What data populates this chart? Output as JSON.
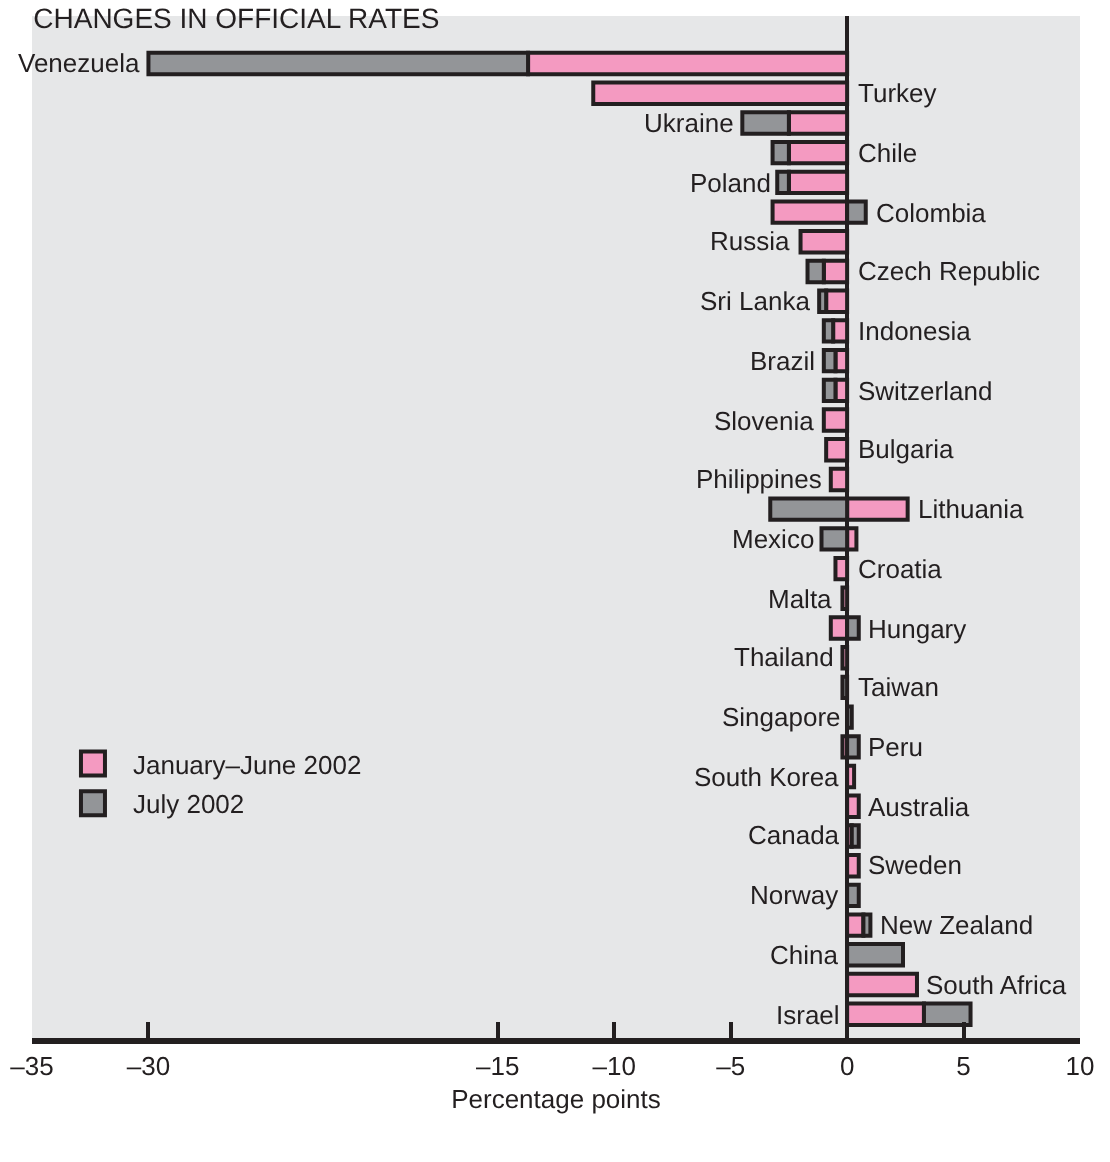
{
  "chart_data": {
    "type": "bar",
    "orientation": "horizontal",
    "title": "CHANGES IN OFFICIAL RATES",
    "xlabel": "Percentage points",
    "categories": [
      "Venezuela",
      "Turkey",
      "Ukraine",
      "Chile",
      "Poland",
      "Colombia",
      "Russia",
      "Czech Republic",
      "Sri Lanka",
      "Indonesia",
      "Brazil",
      "Switzerland",
      "Slovenia",
      "Bulgaria",
      "Philippines",
      "Lithuania",
      "Mexico",
      "Croatia",
      "Malta",
      "Hungary",
      "Thailand",
      "Taiwan",
      "Singapore",
      "Peru",
      "South Korea",
      "Australia",
      "Canada",
      "Sweden",
      "Norway",
      "New Zealand",
      "China",
      "South Africa",
      "Israel"
    ],
    "series": [
      {
        "name": "January–June 2002",
        "color": "#f49ac1",
        "values": [
          -13.7,
          -10.9,
          -2.5,
          -2.5,
          -2.5,
          -3.2,
          -2.0,
          -1.0,
          -0.9,
          -0.6,
          -0.5,
          -0.5,
          -1.0,
          -0.9,
          -0.7,
          2.6,
          0.4,
          -0.5,
          -0.2,
          -0.7,
          -0.2,
          null,
          null,
          -0.2,
          0.3,
          0.5,
          0.2,
          0.5,
          null,
          0.7,
          null,
          3.0,
          3.3
        ]
      },
      {
        "name": "July 2002",
        "color": "#939598",
        "values": [
          -16.3,
          null,
          -2.0,
          -0.7,
          -0.5,
          0.8,
          null,
          -0.7,
          -0.3,
          -0.4,
          -0.5,
          -0.5,
          null,
          null,
          null,
          -3.3,
          -1.1,
          null,
          null,
          0.5,
          null,
          -0.2,
          0.2,
          0.5,
          null,
          null,
          0.3,
          null,
          0.5,
          0.3,
          2.4,
          null,
          2.0
        ]
      }
    ],
    "stacked": true,
    "xlim": [
      -35,
      10
    ],
    "xticks": [
      {
        "value": -35,
        "label": "–35"
      },
      {
        "value": -30,
        "label": "–30"
      },
      {
        "value": -15,
        "label": "–15"
      },
      {
        "value": -10,
        "label": "–10"
      },
      {
        "value": -5,
        "label": "–5"
      },
      0,
      5,
      10
    ],
    "grid": false,
    "legend": "bottom left"
  }
}
